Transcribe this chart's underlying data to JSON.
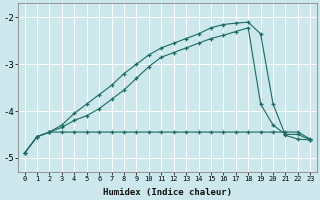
{
  "xlabel": "Humidex (Indice chaleur)",
  "bg_color": "#cce8ec",
  "grid_color": "#ffffff",
  "line_color": "#1a6b62",
  "xlim": [
    -0.5,
    23.5
  ],
  "ylim": [
    -5.3,
    -1.7
  ],
  "yticks": [
    -5,
    -4,
    -3,
    -2
  ],
  "xticks": [
    0,
    1,
    2,
    3,
    4,
    5,
    6,
    7,
    8,
    9,
    10,
    11,
    12,
    13,
    14,
    15,
    16,
    17,
    18,
    19,
    20,
    21,
    22,
    23
  ],
  "line1_x": [
    0,
    1,
    2,
    3,
    4,
    5,
    6,
    7,
    8,
    9,
    10,
    11,
    12,
    13,
    14,
    15,
    16,
    17,
    18,
    19,
    20,
    21,
    22,
    23
  ],
  "line1_y": [
    -4.9,
    -4.55,
    -4.45,
    -4.45,
    -4.45,
    -4.45,
    -4.45,
    -4.45,
    -4.45,
    -4.45,
    -4.45,
    -4.45,
    -4.45,
    -4.45,
    -4.45,
    -4.45,
    -4.45,
    -4.45,
    -4.45,
    -4.45,
    -4.45,
    -4.45,
    -4.45,
    -4.6
  ],
  "line2_x": [
    0,
    1,
    2,
    3,
    4,
    5,
    6,
    7,
    8,
    9,
    10,
    11,
    12,
    13,
    14,
    15,
    16,
    17,
    18,
    19,
    20,
    21,
    22,
    23
  ],
  "line2_y": [
    -4.9,
    -4.55,
    -4.45,
    -4.35,
    -4.2,
    -4.1,
    -3.95,
    -3.75,
    -3.55,
    -3.3,
    -3.05,
    -2.85,
    -2.75,
    -2.65,
    -2.55,
    -2.45,
    -2.38,
    -2.3,
    -2.22,
    -3.85,
    -4.3,
    -4.5,
    -4.5,
    -4.62
  ],
  "line3_x": [
    0,
    1,
    2,
    3,
    4,
    5,
    6,
    7,
    8,
    9,
    10,
    11,
    12,
    13,
    14,
    15,
    16,
    17,
    18,
    19,
    20,
    21,
    22,
    23
  ],
  "line3_y": [
    -4.9,
    -4.55,
    -4.45,
    -4.3,
    -4.05,
    -3.85,
    -3.65,
    -3.45,
    -3.2,
    -3.0,
    -2.8,
    -2.65,
    -2.55,
    -2.45,
    -2.35,
    -2.22,
    -2.15,
    -2.12,
    -2.1,
    -2.35,
    -3.85,
    -4.52,
    -4.6,
    -4.62
  ]
}
